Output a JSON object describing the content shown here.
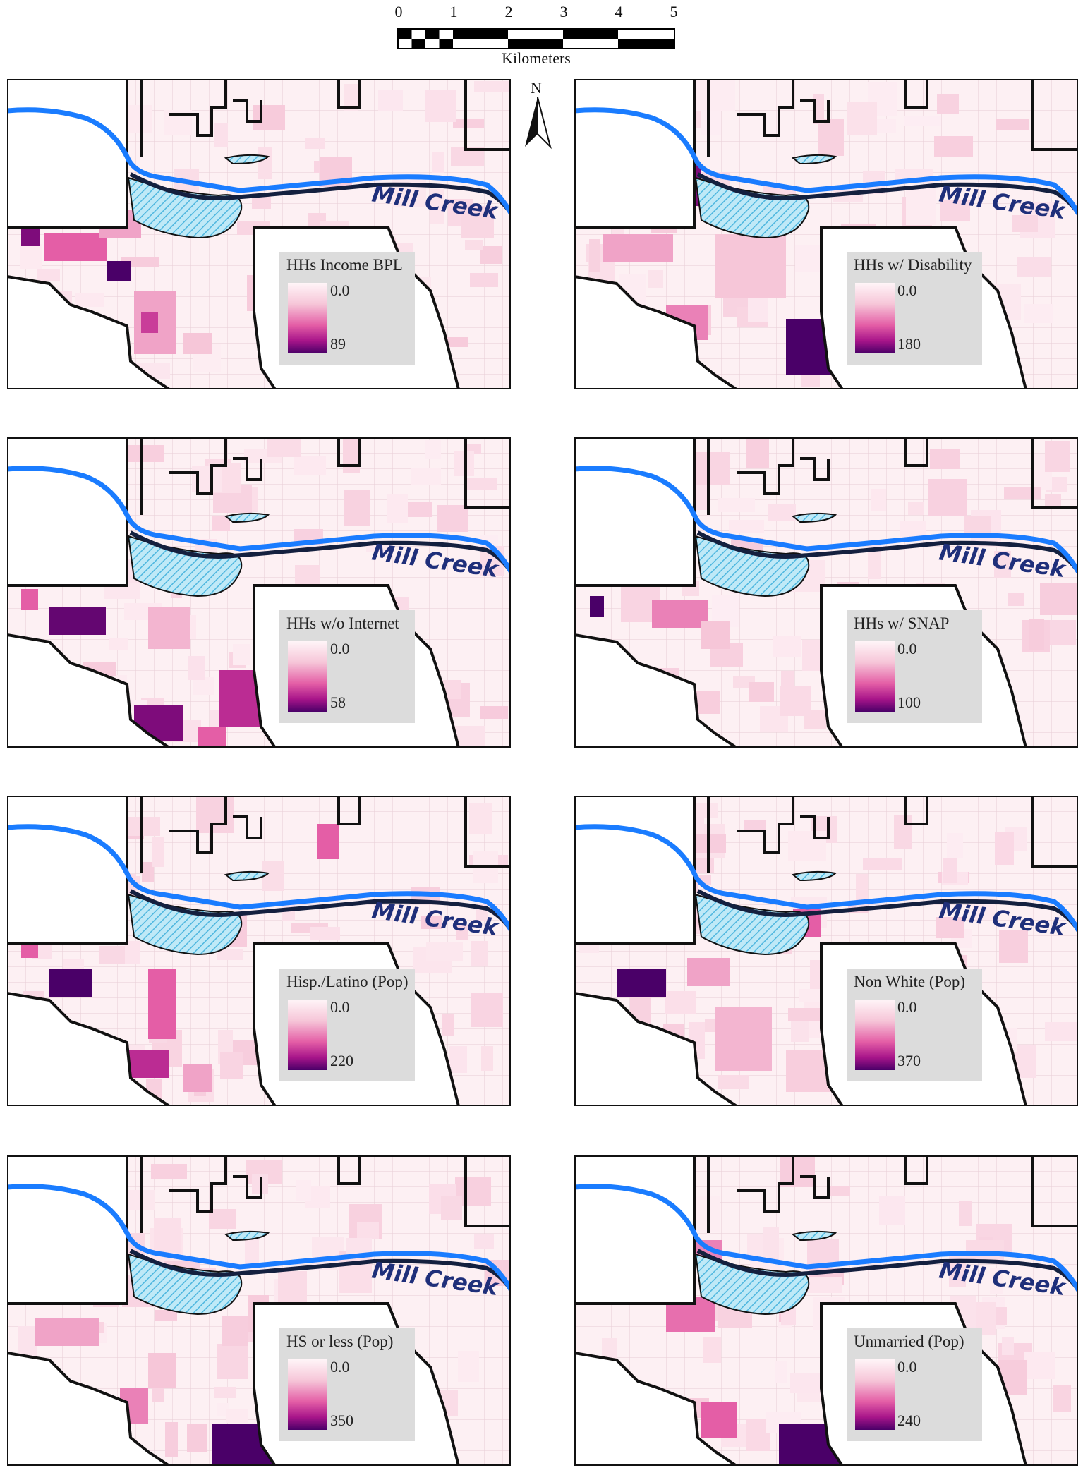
{
  "scale_bar": {
    "ticks": [
      "0",
      "1",
      "2",
      "3",
      "4",
      "5"
    ],
    "unit": "Kilometers"
  },
  "north_arrow": {
    "label": "N",
    "icon": "north-arrow-icon"
  },
  "creek_label": "Mill Creek",
  "colors": {
    "creek": "#1a7cff",
    "ramp_low": "#fff5f8",
    "ramp_mid": "#e45ea6",
    "ramp_high": "#4a0068",
    "hatch": "#7fd0ee",
    "boundary": "#111111",
    "legend_bg": "#dcdcdc",
    "label": "#1f2f7a"
  },
  "panels": [
    {
      "id": "income-bpl",
      "legend_title": "HHs Income BPL",
      "min": "0.0",
      "max": "89"
    },
    {
      "id": "disability",
      "legend_title": "HHs w/ Disability",
      "min": "0.0",
      "max": "180"
    },
    {
      "id": "no-internet",
      "legend_title": "HHs w/o Internet",
      "min": "0.0",
      "max": "58"
    },
    {
      "id": "snap",
      "legend_title": "HHs w/ SNAP",
      "min": "0.0",
      "max": "100"
    },
    {
      "id": "hispanic",
      "legend_title": "Hisp./Latino (Pop)",
      "min": "0.0",
      "max": "220"
    },
    {
      "id": "nonwhite",
      "legend_title": "Non White (Pop)",
      "min": "0.0",
      "max": "370"
    },
    {
      "id": "hs-or-less",
      "legend_title": "HS or less (Pop)",
      "min": "0.0",
      "max": "350"
    },
    {
      "id": "unmarried",
      "legend_title": "Unmarried (Pop)",
      "min": "0.0",
      "max": "240"
    }
  ]
}
